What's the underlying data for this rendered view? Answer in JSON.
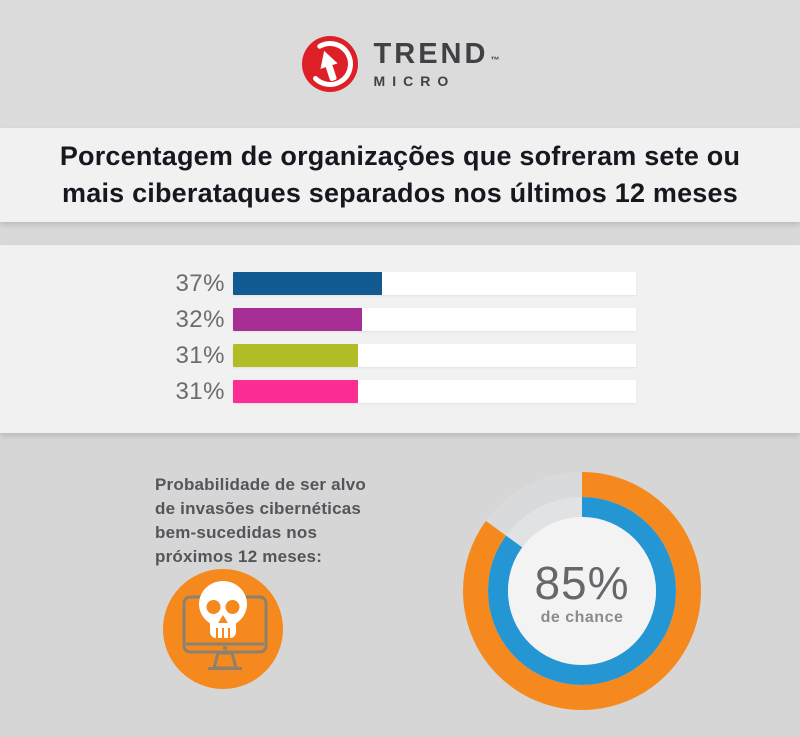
{
  "brand": {
    "wordmark_top": "TREND",
    "wordmark_bottom": "MICRO",
    "trademark": "™"
  },
  "header": {
    "title_line1": "Porcentagem de organizações que sofreram sete ou",
    "title_line2": "mais ciberataques separados nos últimos 12 meses"
  },
  "bar_chart": {
    "max": 100,
    "rows": [
      {
        "label": "37%",
        "value": 37,
        "color": "#115a92"
      },
      {
        "label": "32%",
        "value": 32,
        "color": "#a62e95"
      },
      {
        "label": "31%",
        "value": 31,
        "color": "#b1bd27"
      },
      {
        "label": "31%",
        "value": 31,
        "color": "#fc2e94"
      }
    ]
  },
  "probability": {
    "lines": [
      "Probabilidade de ser alvo",
      "de invasões cibernéticas",
      "bem-sucedidas nos",
      "próximos 12 meses:"
    ]
  },
  "donut": {
    "percent": 85,
    "value_label": "85%",
    "caption": "de chance"
  },
  "colors": {
    "accent_orange": "#f6891e",
    "donut_blue": "#2496d3",
    "donut_gap_outer": "#d9dadb",
    "donut_gap_inner": "#e1e2e3",
    "donut_center": "#f3f3f4",
    "logo_red": "#dd2027",
    "monitor_gray": "#8b8170",
    "skull_white": "#ffffff"
  },
  "chart_data": [
    {
      "type": "bar",
      "orientation": "horizontal",
      "title": "Porcentagem de organizações que sofreram sete ou mais ciberataques separados nos últimos 12 meses",
      "labels": [
        "37%",
        "32%",
        "31%",
        "31%"
      ],
      "values": [
        37,
        32,
        31,
        31
      ],
      "colors": [
        "#115a92",
        "#a62e95",
        "#b1bd27",
        "#fc2e94"
      ],
      "xlim": [
        0,
        100
      ],
      "unit": "%",
      "grid": false,
      "legend": false
    },
    {
      "type": "pie",
      "subtype": "donut",
      "title": "Probabilidade de ser alvo de invasões cibernéticas bem-sucedidas nos próximos 12 meses",
      "values": [
        85,
        15
      ],
      "labels": [
        "85% de chance",
        ""
      ],
      "colors": [
        "#f6891e",
        "#d9dadb"
      ],
      "center_label": "85%",
      "center_caption": "de chance",
      "rings": [
        "outer: orange",
        "inner: blue"
      ],
      "start_angle_deg": 0,
      "direction": "clockwise"
    }
  ]
}
